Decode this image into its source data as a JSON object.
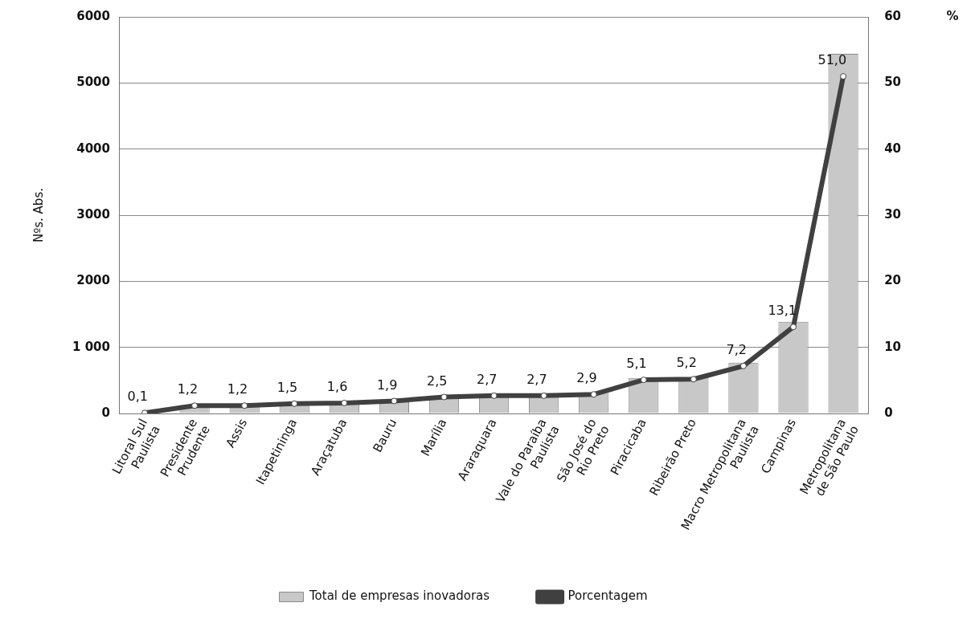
{
  "chart_data": {
    "type": "bar",
    "categories": [
      "Litoral Sul\nPaulista",
      "Presidente\nPrudente",
      "Assis",
      "Itapetininga",
      "Araçatuba",
      "Bauru",
      "Marília",
      "Araraquara",
      "Vale do Paraíba\nPaulista",
      "São José do\nRio Preto",
      "Piracicaba",
      "Ribeirão Preto",
      "Macro Metropolitana\nPaulista",
      "Campinas",
      "Metropolitana\nde São Paulo"
    ],
    "ylabel": "Nºs. Abs.",
    "y2label": "%",
    "ylim": [
      0,
      6000
    ],
    "yticks": [
      0,
      {
        "value": 1000,
        "label": "1 000"
      },
      2000,
      3000,
      4000,
      5000,
      6000
    ],
    "y2lim": [
      0,
      60
    ],
    "y2ticks": [
      0,
      10,
      20,
      30,
      40,
      50,
      60
    ],
    "grid": "y",
    "legend": "bottom",
    "series": [
      {
        "name": "Total de empresas inovadoras",
        "color": "#c8c8c8",
        "values": [
          null,
          130,
          130,
          160,
          170,
          200,
          270,
          290,
          290,
          310,
          540,
          550,
          770,
          1390,
          5440
        ]
      },
      {
        "name": "Porcentagem",
        "type": "line",
        "axis": "y2",
        "color": "#404040",
        "marker": "circle",
        "values": [
          0.1,
          1.2,
          1.2,
          1.5,
          1.6,
          1.9,
          2.5,
          2.7,
          2.7,
          2.9,
          5.1,
          5.2,
          7.2,
          13.1,
          51.0
        ],
        "value_labels": [
          "0,1",
          "1,2",
          "1,2",
          "1,5",
          "1,6",
          "1,9",
          "2,5",
          "2,7",
          "2,7",
          "2,9",
          "5,1",
          "5,2",
          "7,2",
          "13,1",
          "51,0"
        ]
      }
    ]
  }
}
